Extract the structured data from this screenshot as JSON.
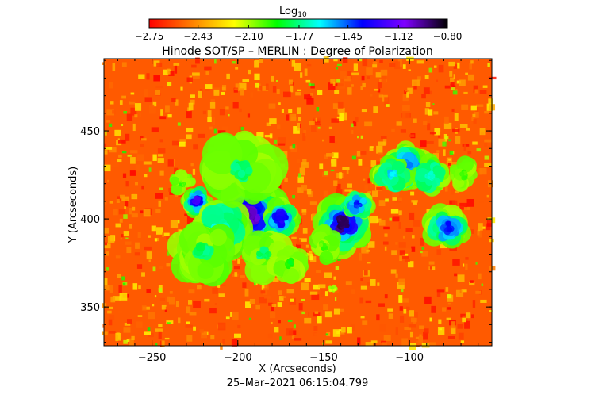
{
  "chart_data": {
    "type": "heatmap",
    "title": "Hinode SOT/SP – MERLIN : Degree of Polarization",
    "xlabel": "X (Arcseconds)",
    "ylabel": "Y (Arcseconds)",
    "timestamp": "25–Mar–2021 06:15:04.799",
    "xlim": [
      -278,
      -52
    ],
    "ylim": [
      328,
      491
    ],
    "x_ticks": [
      -250,
      -200,
      -150,
      -100
    ],
    "y_ticks": [
      350,
      400,
      450
    ],
    "x_tick_labels": [
      "−250",
      "−200",
      "−150",
      "−100"
    ],
    "y_tick_labels": [
      "350",
      "400",
      "450"
    ],
    "colorbar": {
      "label": "Log",
      "label_sub": "10",
      "min": -2.75,
      "max": -0.8,
      "ticks": [
        -2.75,
        -2.43,
        -2.1,
        -1.77,
        -1.45,
        -1.12,
        -0.8
      ],
      "tick_labels": [
        "−2.75",
        "−2.43",
        "−2.10",
        "−1.77",
        "−1.45",
        "−1.12",
        "−0.80"
      ],
      "colors": [
        "#ff0000",
        "#ff7f00",
        "#ffff00",
        "#00ff00",
        "#00ffff",
        "#0000ff",
        "#7f00ff",
        "#000000"
      ]
    },
    "features": [
      {
        "x": -193,
        "y": 402,
        "r": 11,
        "level": -1.0
      },
      {
        "x": -139,
        "y": 397,
        "r": 9,
        "level": -0.9
      },
      {
        "x": -224,
        "y": 410,
        "r": 5,
        "level": -1.2
      },
      {
        "x": -175,
        "y": 400,
        "r": 6,
        "level": -1.3
      },
      {
        "x": -210,
        "y": 395,
        "r": 9,
        "level": -1.7
      },
      {
        "x": -198,
        "y": 428,
        "r": 12,
        "level": -1.8
      },
      {
        "x": -220,
        "y": 382,
        "r": 10,
        "level": -1.8
      },
      {
        "x": -185,
        "y": 380,
        "r": 8,
        "level": -1.8
      },
      {
        "x": -130,
        "y": 408,
        "r": 5,
        "level": -1.4
      },
      {
        "x": -102,
        "y": 430,
        "r": 7,
        "level": -1.5
      },
      {
        "x": -110,
        "y": 425,
        "r": 6,
        "level": -1.6
      },
      {
        "x": -78,
        "y": 395,
        "r": 7,
        "level": -1.4
      },
      {
        "x": -88,
        "y": 425,
        "r": 6,
        "level": -1.7
      },
      {
        "x": -170,
        "y": 375,
        "r": 6,
        "level": -1.9
      },
      {
        "x": -150,
        "y": 385,
        "r": 6,
        "level": -2.0
      },
      {
        "x": -232,
        "y": 420,
        "r": 4,
        "level": -2.0
      },
      {
        "x": -145,
        "y": 360,
        "r": 5,
        "level": -2.1
      },
      {
        "x": -68,
        "y": 425,
        "r": 5,
        "level": -2.0
      }
    ]
  }
}
